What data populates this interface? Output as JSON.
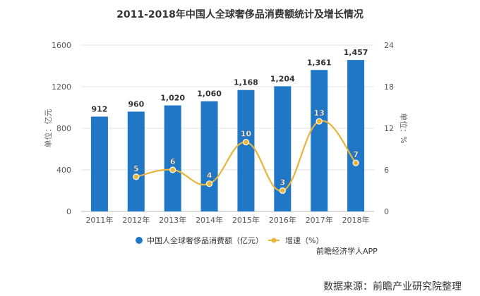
{
  "chart_data": {
    "type": "bar",
    "title": "2011-2018年中国人全球奢侈品消费额统计及增长情况",
    "categories": [
      "2011年",
      "2012年",
      "2013年",
      "2014年",
      "2015年",
      "2016年",
      "2017年",
      "2018年"
    ],
    "series": [
      {
        "name": "中国人全球奢侈品消费额（亿元）",
        "type": "bar",
        "axis": "left",
        "values": [
          912,
          960,
          1020,
          1060,
          1168,
          1204,
          1361,
          1457
        ],
        "labels": [
          "912",
          "960",
          "1,020",
          "1,060",
          "1,168",
          "1,204",
          "1,361",
          "1,457"
        ]
      },
      {
        "name": "增速（%）",
        "type": "line",
        "axis": "right",
        "values": [
          null,
          5,
          6,
          4,
          10,
          3,
          13,
          7
        ],
        "labels": [
          "",
          "5",
          "6",
          "4",
          "10",
          "3",
          "13",
          "7"
        ]
      }
    ],
    "ylabel_left": "单位：亿元",
    "ylabel_right": "单位：%",
    "ylim_left": [
      0,
      1600
    ],
    "ylim_right": [
      0,
      24
    ],
    "yticks_left": [
      0,
      400,
      800,
      1200,
      1600
    ],
    "yticks_right": [
      0,
      6,
      12,
      18,
      24
    ],
    "ytick_labels_left": [
      "0",
      "400",
      "800",
      "1200",
      "1600"
    ],
    "ytick_labels_right": [
      "0",
      "6",
      "12",
      "18",
      "24"
    ],
    "grid": true,
    "legend_position": "bottom",
    "colors": {
      "bar": "#1f77c6",
      "line": "#e8b53a",
      "marker_fill": "#e8b53a",
      "label_text": "#333333"
    }
  },
  "credit": "前瞻经济学人APP",
  "source": "数据来源：前瞻产业研究院整理"
}
